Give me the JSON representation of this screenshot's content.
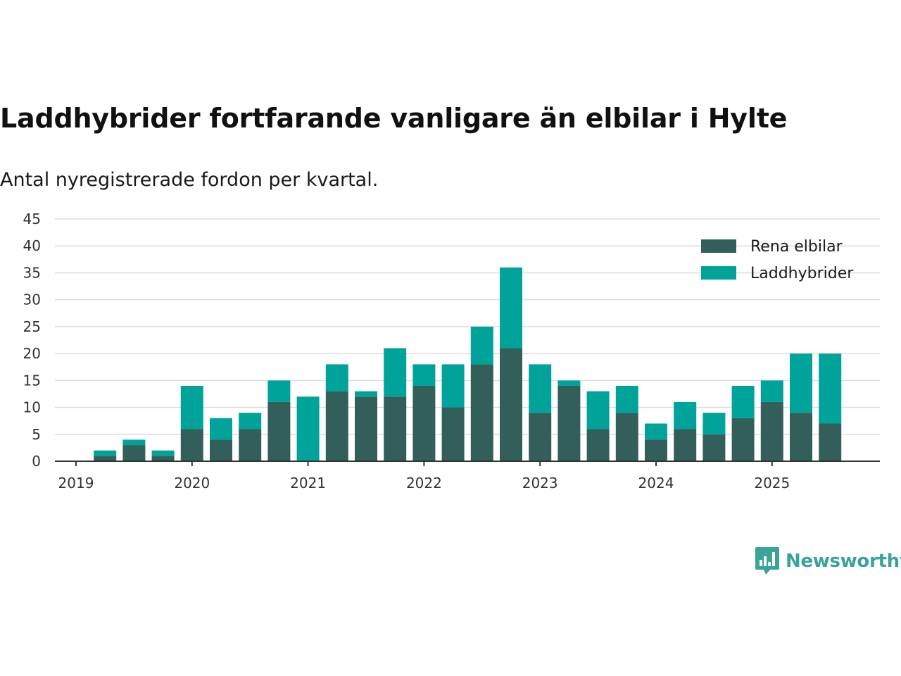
{
  "header": {
    "title": "Laddhybrider fortfarande vanligare än elbilar i Hylte",
    "subtitle": "Antal nyregistrerade fordon per kvartal."
  },
  "brand": {
    "name": "Newsworthy",
    "color": "#3aa39a"
  },
  "colors": {
    "rena_elbilar": "#335f5a",
    "laddhybrider": "#00a39a",
    "grid": "#dddddd",
    "axis": "#333333"
  },
  "chart_data": {
    "type": "bar",
    "stacked": true,
    "title": "Laddhybrider fortfarande vanligare än elbilar i Hylte",
    "subtitle": "Antal nyregistrerade fordon per kvartal.",
    "xlabel": "",
    "ylabel": "",
    "ylim": [
      0,
      45
    ],
    "yticks": [
      0,
      5,
      10,
      15,
      20,
      25,
      30,
      35,
      40,
      45
    ],
    "xticks": [
      "2019",
      "2020",
      "2021",
      "2022",
      "2023",
      "2024",
      "2025"
    ],
    "grid": true,
    "legend_position": "top-right",
    "categories": [
      "2019 Q1",
      "2019 Q2",
      "2019 Q3",
      "2019 Q4",
      "2020 Q1",
      "2020 Q2",
      "2020 Q3",
      "2020 Q4",
      "2021 Q1",
      "2021 Q2",
      "2021 Q3",
      "2021 Q4",
      "2022 Q1",
      "2022 Q2",
      "2022 Q3",
      "2022 Q4",
      "2023 Q1",
      "2023 Q2",
      "2023 Q3",
      "2023 Q4",
      "2024 Q1",
      "2024 Q2",
      "2024 Q3",
      "2024 Q4",
      "2025 Q1",
      "2025 Q2",
      "2025 Q3"
    ],
    "series": [
      {
        "name": "Rena elbilar",
        "color": "#335f5a",
        "values": [
          0,
          1,
          3,
          1,
          6,
          4,
          6,
          11,
          0,
          13,
          12,
          12,
          14,
          10,
          18,
          21,
          9,
          14,
          6,
          9,
          4,
          6,
          5,
          8,
          11,
          9,
          7
        ]
      },
      {
        "name": "Laddhybrider",
        "color": "#00a39a",
        "values": [
          0,
          1,
          1,
          1,
          8,
          4,
          3,
          4,
          12,
          5,
          1,
          9,
          4,
          8,
          7,
          15,
          9,
          1,
          7,
          5,
          3,
          5,
          4,
          6,
          4,
          11,
          13
        ]
      }
    ]
  }
}
